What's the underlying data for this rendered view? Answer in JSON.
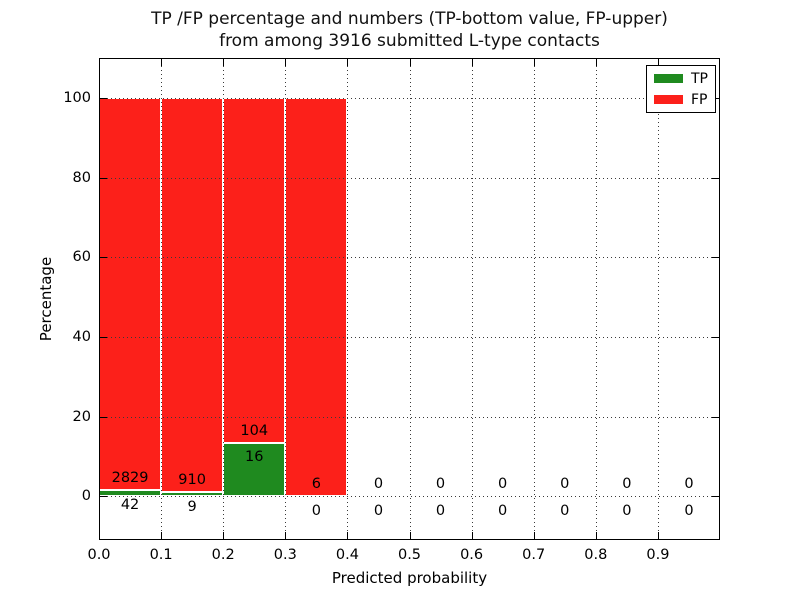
{
  "title": {
    "line1": "TP /FP percentage and numbers (TP-bottom value, FP-upper)",
    "line2": "from among 3916 submitted L-type contacts"
  },
  "axes": {
    "xlabel": "Predicted probability",
    "ylabel": "Percentage"
  },
  "legend": {
    "position": "upper right",
    "items": [
      {
        "label": "TP",
        "color": "#1f8a1f"
      },
      {
        "label": "FP",
        "color": "#fc201a"
      }
    ]
  },
  "colors": {
    "tp": "#1f8a1f",
    "fp": "#fc201a",
    "grid": "#3a3a3a",
    "spine": "#000000",
    "bar_edge": "#ffffff",
    "background": "#ffffff",
    "text": "#000000"
  },
  "chart_data": {
    "type": "bar",
    "stacked": true,
    "title": "TP /FP percentage and numbers (TP-bottom value, FP-upper) from among 3916 submitted L-type contacts",
    "xlabel": "Predicted probability",
    "ylabel": "Percentage",
    "xlim": [
      0.0,
      1.0
    ],
    "ylim": [
      -11,
      110
    ],
    "x_ticks": [
      0.0,
      0.1,
      0.2,
      0.3,
      0.4,
      0.5,
      0.6,
      0.7,
      0.8,
      0.9
    ],
    "x_tick_labels": [
      "0.0",
      "0.1",
      "0.2",
      "0.3",
      "0.4",
      "0.5",
      "0.6",
      "0.7",
      "0.8",
      "0.9"
    ],
    "y_ticks": [
      0,
      20,
      40,
      60,
      80,
      100
    ],
    "y_tick_labels": [
      "0",
      "20",
      "40",
      "60",
      "80",
      "100"
    ],
    "bin_edges": [
      0.0,
      0.1,
      0.2,
      0.3,
      0.4,
      0.5,
      0.6,
      0.7,
      0.8,
      0.9,
      1.0
    ],
    "series": [
      {
        "name": "TP",
        "counts": [
          42,
          9,
          16,
          0,
          0,
          0,
          0,
          0,
          0,
          0
        ]
      },
      {
        "name": "FP",
        "counts": [
          2829,
          910,
          104,
          6,
          0,
          0,
          0,
          0,
          0,
          0
        ]
      }
    ],
    "bar_heights_note": "each non-empty bin stacked to 100% (TP bottom, FP upper)",
    "tp_percent_per_bin": [
      1.46,
      0.98,
      13.33,
      0,
      0,
      0,
      0,
      0,
      0,
      0
    ],
    "total_contacts": 3916,
    "grid": {
      "visible": true,
      "linestyle": "dotted"
    },
    "legend_position": "upper right"
  }
}
